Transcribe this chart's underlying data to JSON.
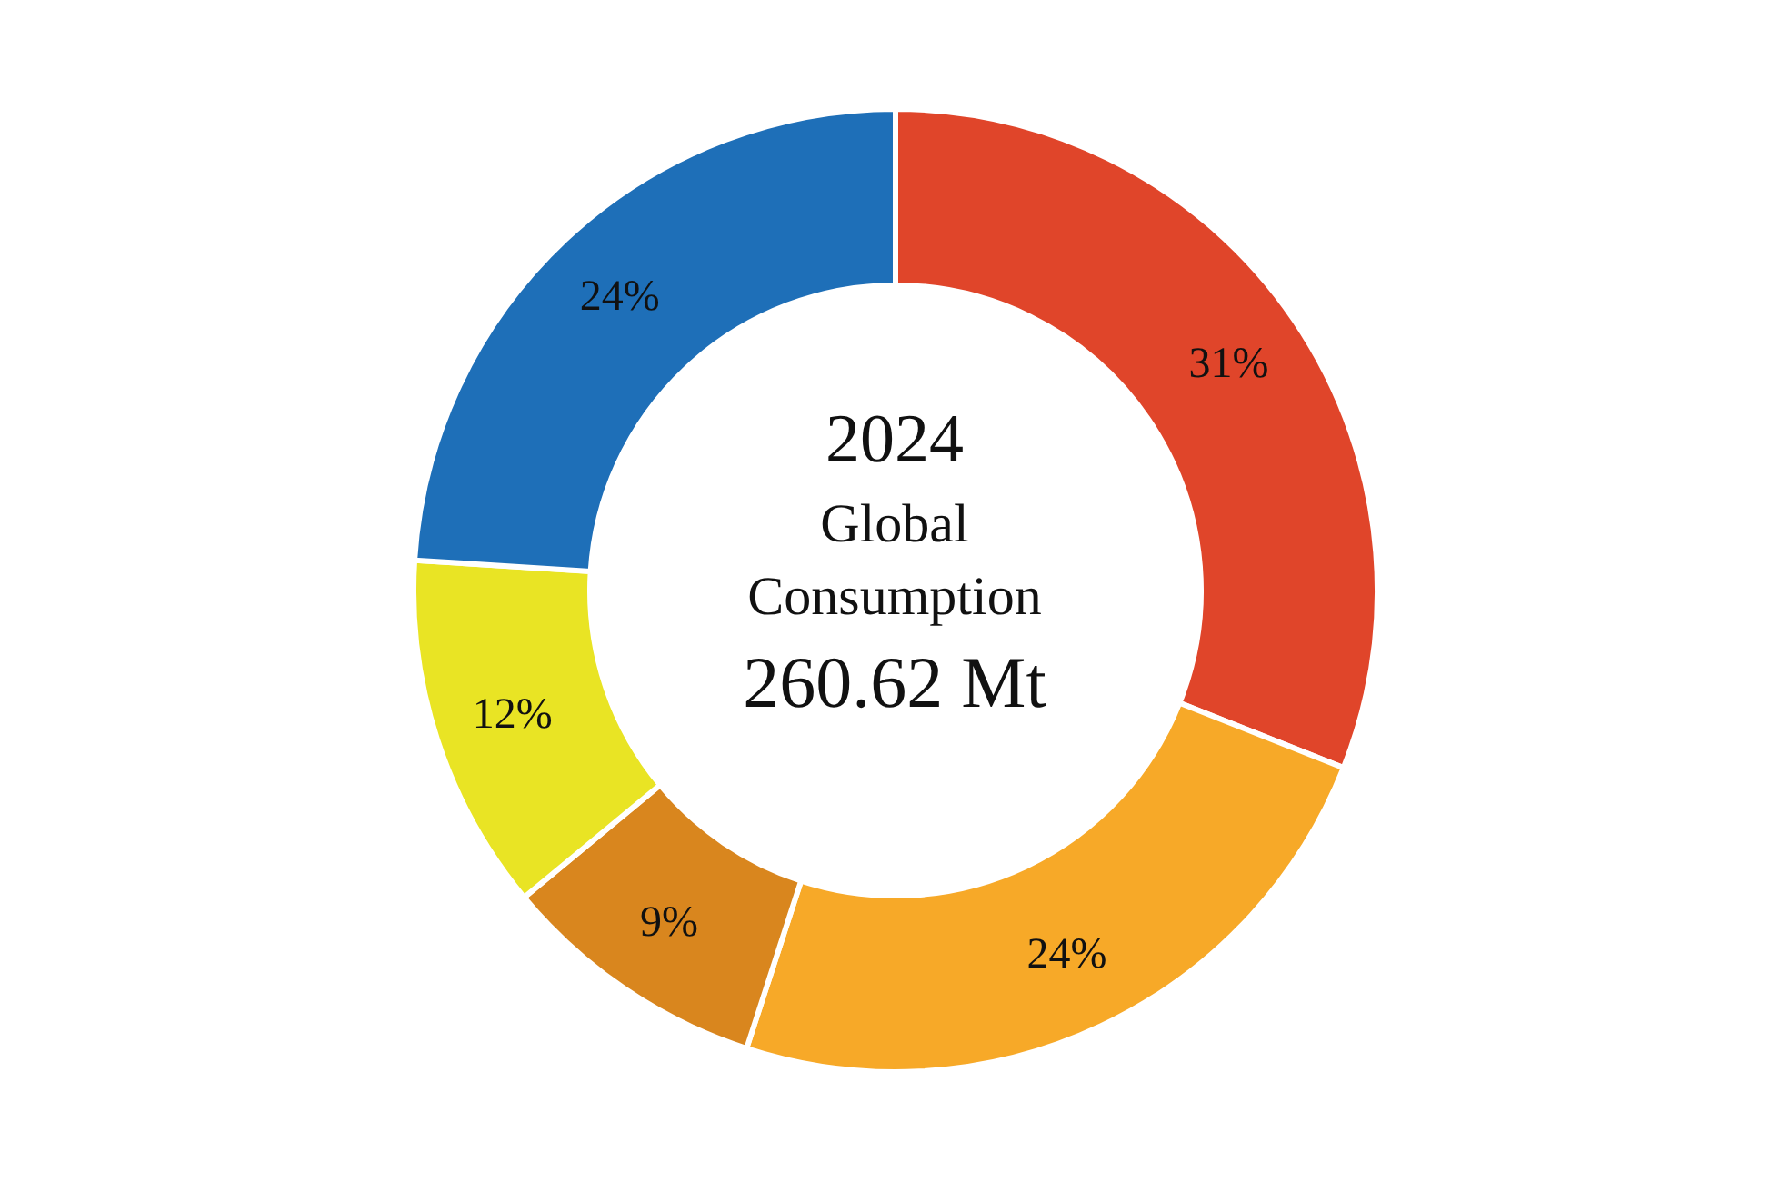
{
  "chart_data": {
    "type": "donut",
    "categories": [
      null,
      null,
      null,
      null,
      null
    ],
    "values": [
      31,
      24,
      9,
      12,
      24
    ],
    "value_labels": [
      "31%",
      "24%",
      "9%",
      "12%",
      "24%"
    ],
    "colors": [
      "#e0452a",
      "#f7a928",
      "#d9861e",
      "#e9e424",
      "#1e6fb8"
    ],
    "annotations": [
      "2024",
      "Global",
      "Consumption",
      "260.62 Mt"
    ],
    "legend": false
  }
}
